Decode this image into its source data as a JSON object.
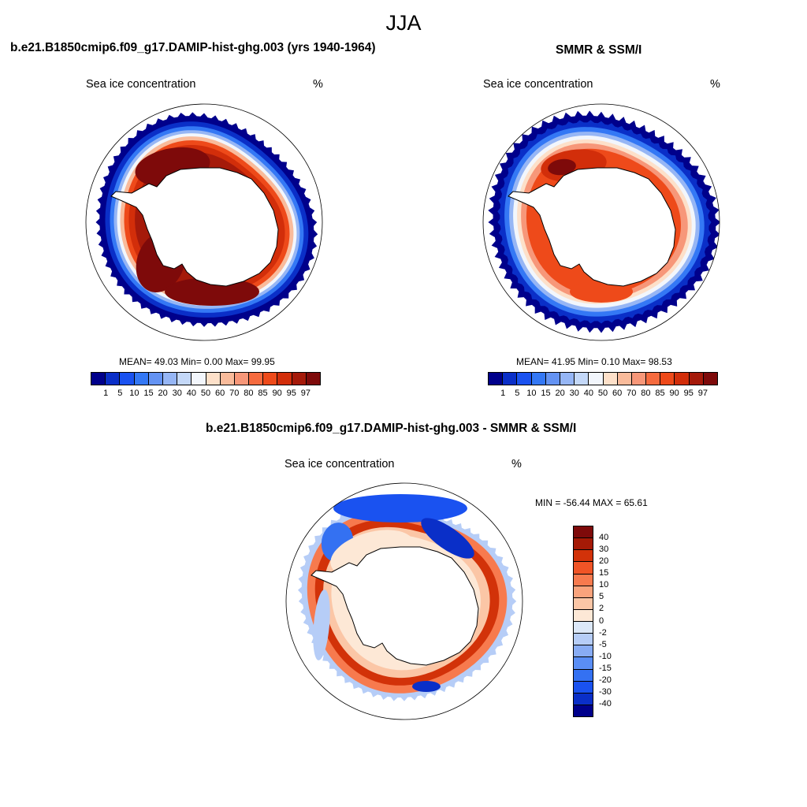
{
  "main_title": "JJA",
  "colors": {
    "seq": [
      "#00008b",
      "#0a2fc8",
      "#1a52f0",
      "#3478f5",
      "#6493f3",
      "#96b6f5",
      "#c4d8f8",
      "#f2f6fc",
      "#fde0c9",
      "#f9bb9b",
      "#f79779",
      "#f66b3f",
      "#ee4a1a",
      "#d22e0a",
      "#a51a0a",
      "#7e0a0a"
    ],
    "diff": [
      "#00008b",
      "#0a2fc8",
      "#1a52f0",
      "#3471f2",
      "#5a8ef5",
      "#88acf4",
      "#b6cdf7",
      "#dce8f8",
      "#fde8d6",
      "#fbc6a6",
      "#f9a37c",
      "#f77a4e",
      "#f05426",
      "#d23209",
      "#a51a06",
      "#7e0a0a"
    ]
  },
  "panels": [
    {
      "title": "b.e21.B1850cmip6.f09_g17.DAMIP-hist-ghg.003 (yrs 1940-1964)",
      "subtitle": "Sea ice concentration",
      "units": "%",
      "stats": "MEAN=  49.03  Min=   0.00  Max=  99.95",
      "colorbar_labels": [
        "1",
        "5",
        "10",
        "15",
        "20",
        "30",
        "40",
        "50",
        "60",
        "70",
        "80",
        "85",
        "90",
        "95",
        "97"
      ]
    },
    {
      "title": "SMMR & SSM/I",
      "subtitle": "Sea ice concentration",
      "units": "%",
      "stats": "MEAN=  41.95  Min=   0.10  Max=  98.53",
      "colorbar_labels": [
        "1",
        "5",
        "10",
        "15",
        "20",
        "30",
        "40",
        "50",
        "60",
        "70",
        "80",
        "85",
        "90",
        "95",
        "97"
      ]
    },
    {
      "title": "b.e21.B1850cmip6.f09_g17.DAMIP-hist-ghg.003 - SMMR & SSM/I",
      "subtitle": "Sea ice concentration",
      "units": "%",
      "stats": "MIN = -56.44 MAX =  65.61",
      "colorbar_labels": [
        "40",
        "30",
        "20",
        "15",
        "10",
        "5",
        "2",
        "0",
        "-2",
        "-5",
        "-10",
        "-15",
        "-20",
        "-30",
        "-40"
      ]
    }
  ]
}
